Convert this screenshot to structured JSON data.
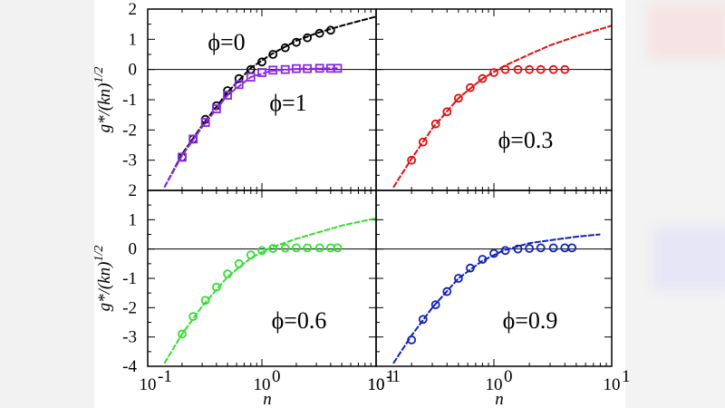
{
  "chart_data": [
    {
      "type": "scatter",
      "panel": "top-left",
      "labels": [
        "ϕ=0",
        "ϕ=1"
      ],
      "xscale": "log",
      "xlim": [
        0.1,
        10
      ],
      "ylim": [
        -4,
        2
      ],
      "yticks": [
        "2",
        "1",
        "0",
        "-1",
        "-2",
        "-3"
      ],
      "xticks": [],
      "ylabel": "g*/(kn)^1/2",
      "series": [
        {
          "label": "ϕ=0",
          "color": "#000000",
          "marker": "circle",
          "points": [
            [
              0.2,
              -2.9
            ],
            [
              0.25,
              -2.3
            ],
            [
              0.32,
              -1.65
            ],
            [
              0.4,
              -1.2
            ],
            [
              0.5,
              -0.7
            ],
            [
              0.63,
              -0.3
            ],
            [
              0.8,
              0.0
            ],
            [
              1.0,
              0.25
            ],
            [
              1.25,
              0.5
            ],
            [
              1.6,
              0.72
            ],
            [
              2.0,
              0.9
            ],
            [
              2.5,
              1.05
            ],
            [
              3.2,
              1.2
            ],
            [
              4.0,
              1.3
            ]
          ],
          "curve": [
            [
              0.14,
              -3.9
            ],
            [
              0.2,
              -2.8
            ],
            [
              0.3,
              -1.85
            ],
            [
              0.5,
              -0.75
            ],
            [
              0.8,
              0.05
            ],
            [
              1.2,
              0.5
            ],
            [
              2.0,
              0.95
            ],
            [
              3.0,
              1.2
            ],
            [
              5.0,
              1.45
            ],
            [
              10,
              1.75
            ]
          ]
        },
        {
          "label": "ϕ=1",
          "color": "#8a2be2",
          "marker": "square",
          "points": [
            [
              0.2,
              -2.9
            ],
            [
              0.25,
              -2.3
            ],
            [
              0.32,
              -1.75
            ],
            [
              0.4,
              -1.3
            ],
            [
              0.5,
              -0.85
            ],
            [
              0.63,
              -0.5
            ],
            [
              0.8,
              -0.25
            ],
            [
              1.0,
              -0.1
            ],
            [
              1.25,
              -0.02
            ],
            [
              1.6,
              0.0
            ],
            [
              2.0,
              0.03
            ],
            [
              2.5,
              0.03
            ],
            [
              3.2,
              0.04
            ],
            [
              4.0,
              0.04
            ],
            [
              4.6,
              0.04
            ]
          ],
          "curve": [
            [
              0.14,
              -3.9
            ],
            [
              0.2,
              -2.85
            ],
            [
              0.3,
              -1.9
            ],
            [
              0.5,
              -0.85
            ],
            [
              0.8,
              -0.25
            ],
            [
              1.2,
              -0.05
            ],
            [
              2.0,
              0.02
            ],
            [
              3.0,
              0.03
            ],
            [
              4.6,
              0.04
            ]
          ]
        }
      ]
    },
    {
      "type": "scatter",
      "panel": "top-right",
      "labels": [
        "ϕ=0.3"
      ],
      "xscale": "log",
      "xlim": [
        0.1,
        10
      ],
      "ylim": [
        -4,
        2
      ],
      "yticks": [],
      "xticks": [],
      "series": [
        {
          "label": "ϕ=0.3",
          "color": "#dd1111",
          "marker": "circle",
          "points": [
            [
              0.2,
              -3.0
            ],
            [
              0.25,
              -2.4
            ],
            [
              0.32,
              -1.8
            ],
            [
              0.4,
              -1.4
            ],
            [
              0.5,
              -0.95
            ],
            [
              0.63,
              -0.6
            ],
            [
              0.8,
              -0.3
            ],
            [
              1.0,
              -0.1
            ],
            [
              1.25,
              0.0
            ],
            [
              1.6,
              0.0
            ],
            [
              2.0,
              0.0
            ],
            [
              2.5,
              0.0
            ],
            [
              3.2,
              0.0
            ],
            [
              4.0,
              0.0
            ]
          ],
          "curve": [
            [
              0.14,
              -3.9
            ],
            [
              0.2,
              -2.95
            ],
            [
              0.3,
              -1.95
            ],
            [
              0.5,
              -0.95
            ],
            [
              0.8,
              -0.3
            ],
            [
              1.2,
              0.1
            ],
            [
              2.0,
              0.5
            ],
            [
              3.0,
              0.8
            ],
            [
              5.0,
              1.1
            ],
            [
              10,
              1.45
            ]
          ]
        }
      ]
    },
    {
      "type": "scatter",
      "panel": "bottom-left",
      "labels": [
        "ϕ=0.6"
      ],
      "xscale": "log",
      "xlim": [
        0.1,
        10
      ],
      "ylim": [
        -4,
        2
      ],
      "yticks": [
        "2",
        "1",
        "0",
        "-1",
        "-2",
        "-3",
        "-4"
      ],
      "xticks": [
        "10",
        "10",
        "10"
      ],
      "xtick_exponents": [
        "-1",
        "0",
        "1"
      ],
      "xlabel": "n",
      "ylabel": "g*/(kn)^1/2",
      "series": [
        {
          "label": "ϕ=0.6",
          "color": "#33dd33",
          "marker": "circle",
          "points": [
            [
              0.2,
              -2.9
            ],
            [
              0.25,
              -2.3
            ],
            [
              0.32,
              -1.75
            ],
            [
              0.4,
              -1.3
            ],
            [
              0.5,
              -0.85
            ],
            [
              0.63,
              -0.5
            ],
            [
              0.8,
              -0.2
            ],
            [
              1.0,
              -0.05
            ],
            [
              1.25,
              0.02
            ],
            [
              1.6,
              0.03
            ],
            [
              2.0,
              0.04
            ],
            [
              2.5,
              0.04
            ],
            [
              3.2,
              0.04
            ],
            [
              4.0,
              0.04
            ],
            [
              4.6,
              0.04
            ]
          ],
          "curve": [
            [
              0.14,
              -3.9
            ],
            [
              0.2,
              -2.9
            ],
            [
              0.3,
              -1.95
            ],
            [
              0.5,
              -0.95
            ],
            [
              0.8,
              -0.3
            ],
            [
              1.2,
              0.05
            ],
            [
              2.0,
              0.35
            ],
            [
              3.0,
              0.55
            ],
            [
              5.0,
              0.8
            ],
            [
              10,
              1.05
            ]
          ]
        }
      ]
    },
    {
      "type": "scatter",
      "panel": "bottom-right",
      "labels": [
        "ϕ=0.9"
      ],
      "xscale": "log",
      "xlim": [
        0.1,
        10
      ],
      "ylim": [
        -4,
        2
      ],
      "yticks": [],
      "xticks": [
        "10",
        "10",
        "10"
      ],
      "xtick_exponents": [
        "-1",
        "0",
        "1"
      ],
      "xlabel": "n",
      "series": [
        {
          "label": "ϕ=0.9",
          "color": "#1122bb",
          "marker": "circle",
          "points": [
            [
              0.2,
              -3.1
            ],
            [
              0.25,
              -2.4
            ],
            [
              0.32,
              -1.9
            ],
            [
              0.4,
              -1.45
            ],
            [
              0.5,
              -1.0
            ],
            [
              0.63,
              -0.65
            ],
            [
              0.8,
              -0.35
            ],
            [
              1.0,
              -0.15
            ],
            [
              1.25,
              -0.05
            ],
            [
              1.6,
              0.0
            ],
            [
              2.0,
              0.02
            ],
            [
              2.5,
              0.04
            ],
            [
              3.2,
              0.04
            ],
            [
              4.0,
              0.04
            ],
            [
              4.6,
              0.04
            ]
          ],
          "curve": [
            [
              0.14,
              -3.9
            ],
            [
              0.2,
              -2.95
            ],
            [
              0.3,
              -2.0
            ],
            [
              0.5,
              -1.0
            ],
            [
              0.8,
              -0.4
            ],
            [
              1.2,
              -0.05
            ],
            [
              2.0,
              0.2
            ],
            [
              3.0,
              0.3
            ],
            [
              5.0,
              0.42
            ],
            [
              8,
              0.5
            ]
          ]
        }
      ]
    }
  ]
}
